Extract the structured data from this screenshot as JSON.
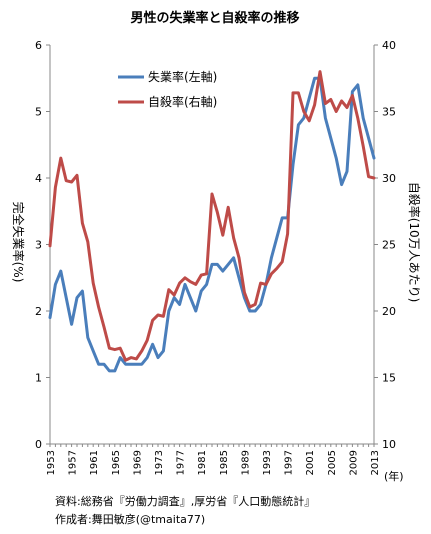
{
  "chart_data": {
    "type": "line",
    "title": "男性の失業率と自殺率の推移",
    "ylabel_left": "完全失業率(%)",
    "ylabel_right": "自殺率(10万人あたり)",
    "xlabel": "(年)",
    "x_tick_labels": [
      "1953",
      "1957",
      "1961",
      "1965",
      "1969",
      "1973",
      "1977",
      "1981",
      "1985",
      "1989",
      "1993",
      "1997",
      "2001",
      "2005",
      "2009",
      "2013"
    ],
    "y_left_ticks": [
      "0",
      "1",
      "2",
      "3",
      "4",
      "5",
      "6"
    ],
    "y_right_ticks": [
      "10",
      "15",
      "20",
      "25",
      "30",
      "35",
      "40"
    ],
    "y_left_range": [
      0,
      6
    ],
    "y_right_range": [
      10,
      40
    ],
    "x_range": [
      1953,
      2013
    ],
    "legend_position": "top-left",
    "grid": false,
    "x": [
      1953,
      1954,
      1955,
      1956,
      1957,
      1958,
      1959,
      1960,
      1961,
      1962,
      1963,
      1964,
      1965,
      1966,
      1967,
      1968,
      1969,
      1970,
      1971,
      1972,
      1973,
      1974,
      1975,
      1976,
      1977,
      1978,
      1979,
      1980,
      1981,
      1982,
      1983,
      1984,
      1985,
      1986,
      1987,
      1988,
      1989,
      1990,
      1991,
      1992,
      1993,
      1994,
      1995,
      1996,
      1997,
      1998,
      1999,
      2000,
      2001,
      2002,
      2003,
      2004,
      2005,
      2006,
      2007,
      2008,
      2009,
      2010,
      2011,
      2012,
      2013
    ],
    "series": [
      {
        "name": "失業率(左軸)",
        "axis": "left",
        "color": "#4a7ebb",
        "values": [
          1.9,
          2.4,
          2.6,
          2.2,
          1.8,
          2.2,
          2.3,
          1.6,
          1.4,
          1.2,
          1.2,
          1.1,
          1.1,
          1.3,
          1.2,
          1.2,
          1.2,
          1.2,
          1.3,
          1.5,
          1.3,
          1.4,
          2.0,
          2.2,
          2.1,
          2.4,
          2.2,
          2.0,
          2.3,
          2.4,
          2.7,
          2.7,
          2.6,
          2.7,
          2.8,
          2.5,
          2.2,
          2.0,
          2.0,
          2.1,
          2.4,
          2.8,
          3.1,
          3.4,
          3.4,
          4.2,
          4.8,
          4.9,
          5.2,
          5.5,
          5.5,
          4.9,
          4.6,
          4.3,
          3.9,
          4.1,
          5.3,
          5.4,
          4.9,
          4.6,
          4.3
        ]
      },
      {
        "name": "自殺率(右軸)",
        "axis": "right",
        "color": "#be4b48",
        "values": [
          24.9,
          29.3,
          31.5,
          29.8,
          29.7,
          30.2,
          26.6,
          25.2,
          22.1,
          20.3,
          18.8,
          17.2,
          17.1,
          17.2,
          16.3,
          16.5,
          16.4,
          17.0,
          17.8,
          19.3,
          19.7,
          19.6,
          21.6,
          21.2,
          22.1,
          22.5,
          22.2,
          22.0,
          22.7,
          22.8,
          28.8,
          27.4,
          25.7,
          27.8,
          25.5,
          24.0,
          21.4,
          20.3,
          20.5,
          22.1,
          22.0,
          22.8,
          23.2,
          23.7,
          25.8,
          36.4,
          36.4,
          35.0,
          34.3,
          35.5,
          38.0,
          35.6,
          35.9,
          35.0,
          35.8,
          35.3,
          36.2,
          34.5,
          32.4,
          30.1,
          30.0
        ]
      }
    ]
  },
  "notes": {
    "source": "資料:総務省『労働力調査』,厚労省『人口動態統計』",
    "author": "作成者:舞田敏彦(@tmaita77)"
  }
}
